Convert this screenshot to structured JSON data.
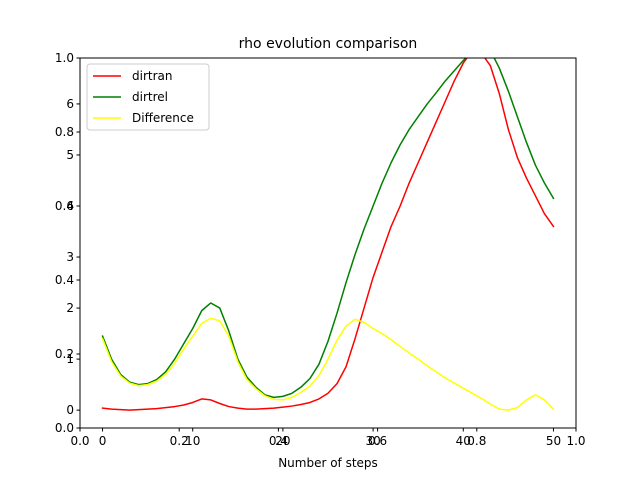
{
  "chart_data": {
    "type": "line",
    "title": "rho evolution comparison",
    "xlabel": "Number of steps",
    "ylabel": "",
    "xlim": [
      -2.5,
      52.5
    ],
    "ylim": [
      -0.35,
      6.9
    ],
    "xticks": [
      0,
      10,
      20,
      30,
      40,
      50
    ],
    "yticks": [
      0,
      1,
      2,
      3,
      4,
      5,
      6
    ],
    "frame_xticks": [
      0.0,
      0.2,
      0.4,
      0.6,
      0.8,
      1.0
    ],
    "frame_yticks": [
      0.0,
      0.2,
      0.4,
      0.6,
      0.8,
      1.0
    ],
    "grid": false,
    "legend_position": "upper-left",
    "x": [
      0,
      1,
      2,
      3,
      4,
      5,
      6,
      7,
      8,
      9,
      10,
      11,
      12,
      13,
      14,
      15,
      16,
      17,
      18,
      19,
      20,
      21,
      22,
      23,
      24,
      25,
      26,
      27,
      28,
      29,
      30,
      31,
      32,
      33,
      34,
      35,
      36,
      37,
      38,
      39,
      40,
      41,
      42,
      43,
      44,
      45,
      46,
      47,
      48,
      49,
      50
    ],
    "series": [
      {
        "name": "dirtran",
        "color": "#ff0000",
        "values": [
          0.04,
          0.02,
          0.01,
          0.0,
          0.01,
          0.02,
          0.03,
          0.05,
          0.07,
          0.1,
          0.15,
          0.22,
          0.2,
          0.13,
          0.07,
          0.04,
          0.02,
          0.02,
          0.03,
          0.04,
          0.06,
          0.08,
          0.11,
          0.15,
          0.22,
          0.33,
          0.52,
          0.85,
          1.4,
          2.0,
          2.6,
          3.1,
          3.6,
          4.0,
          4.45,
          4.85,
          5.25,
          5.65,
          6.05,
          6.45,
          6.8,
          7.05,
          7.0,
          6.75,
          6.2,
          5.5,
          4.95,
          4.55,
          4.2,
          3.85,
          3.6
        ]
      },
      {
        "name": "dirtrel",
        "color": "#008000",
        "values": [
          1.45,
          1.0,
          0.7,
          0.55,
          0.5,
          0.52,
          0.6,
          0.75,
          1.0,
          1.3,
          1.6,
          1.95,
          2.1,
          2.0,
          1.55,
          1.0,
          0.65,
          0.45,
          0.3,
          0.25,
          0.27,
          0.33,
          0.45,
          0.62,
          0.9,
          1.35,
          1.9,
          2.5,
          3.05,
          3.55,
          4.0,
          4.45,
          4.85,
          5.2,
          5.5,
          5.75,
          6.0,
          6.22,
          6.45,
          6.65,
          6.85,
          7.02,
          7.1,
          7.05,
          6.7,
          6.25,
          5.75,
          5.25,
          4.8,
          4.45,
          4.15
        ]
      },
      {
        "name": "Difference",
        "color": "#ffff00",
        "values": [
          1.4,
          0.95,
          0.67,
          0.53,
          0.48,
          0.5,
          0.57,
          0.7,
          0.92,
          1.2,
          1.45,
          1.7,
          1.8,
          1.75,
          1.45,
          0.95,
          0.6,
          0.42,
          0.28,
          0.21,
          0.2,
          0.25,
          0.35,
          0.47,
          0.68,
          1.0,
          1.37,
          1.65,
          1.78,
          1.72,
          1.6,
          1.5,
          1.38,
          1.25,
          1.12,
          1.0,
          0.87,
          0.75,
          0.63,
          0.53,
          0.43,
          0.33,
          0.23,
          0.12,
          0.02,
          0.0,
          0.05,
          0.2,
          0.3,
          0.2,
          0.02
        ]
      }
    ]
  }
}
